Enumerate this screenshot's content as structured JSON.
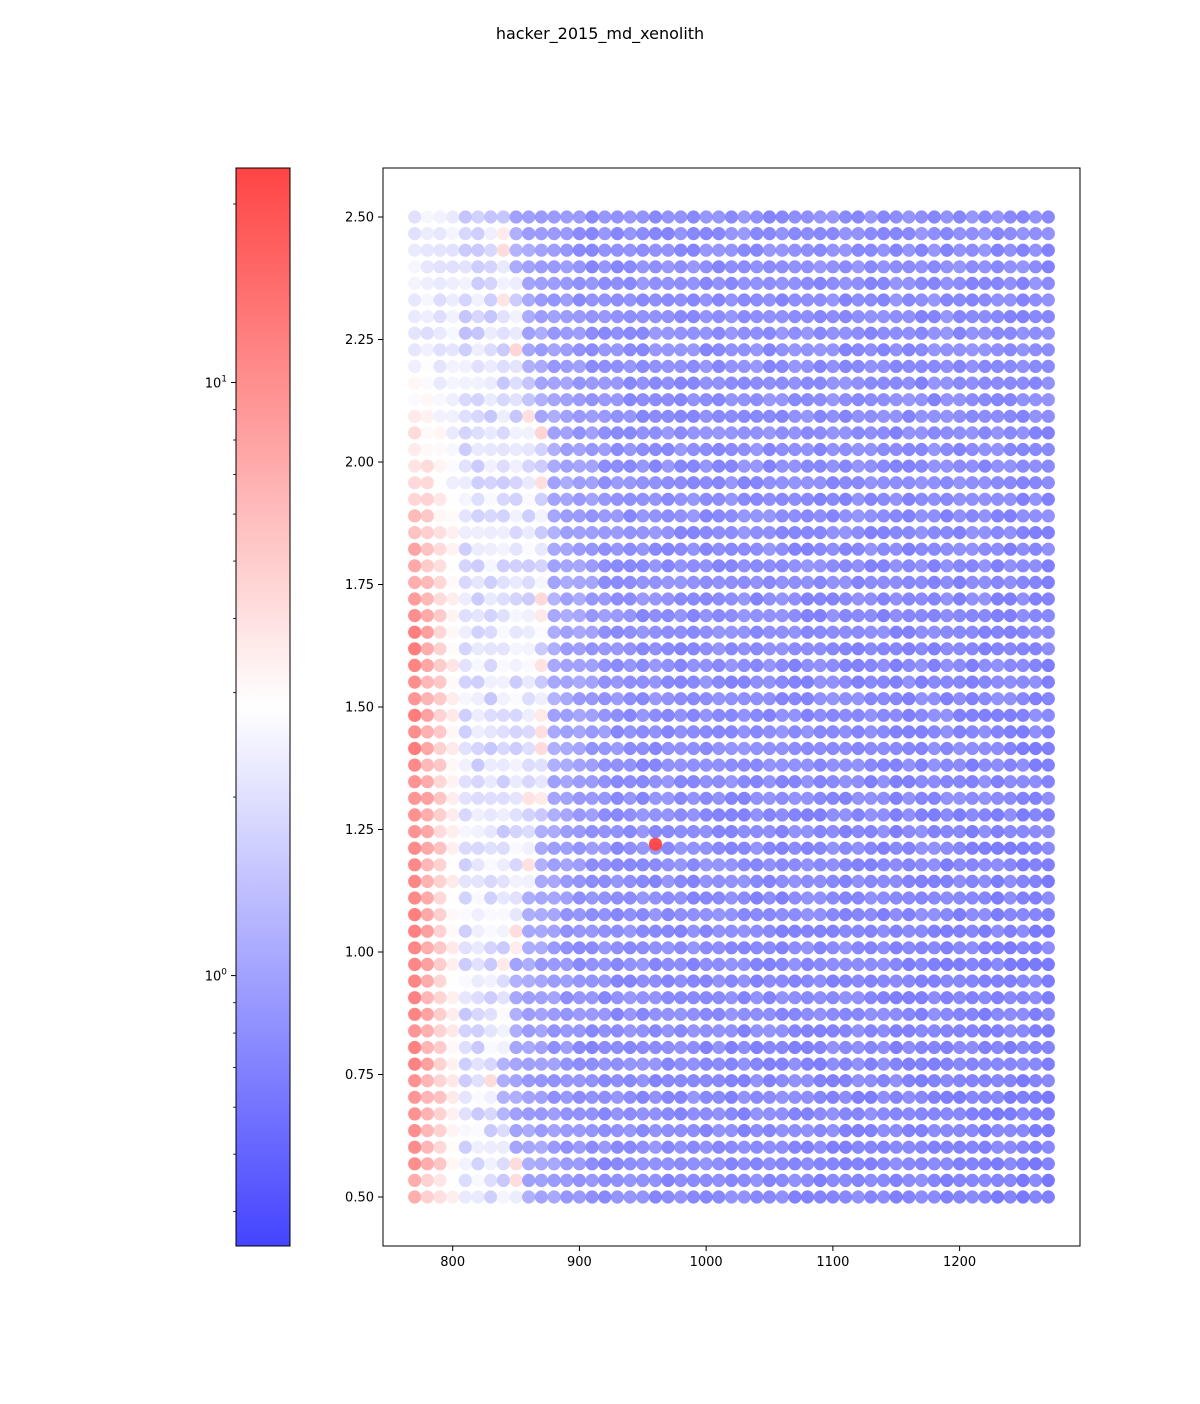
{
  "figure": {
    "title": "hacker_2015_md_xenolith"
  },
  "colorbar": {
    "scale": "log",
    "colormap": "bwr",
    "range": [
      0.35,
      23
    ],
    "ticks": [
      {
        "value": 1,
        "base": "10",
        "exp": "0"
      },
      {
        "value": 10,
        "base": "10",
        "exp": "1"
      }
    ]
  },
  "colors": {
    "low": "#4444ff",
    "mid": "#ffffff",
    "high": "#ff4444",
    "marker_alpha": 0.72
  },
  "chart_data": {
    "type": "scatter",
    "title": "hacker_2015_md_xenolith",
    "xlabel": "",
    "ylabel": "",
    "xlim": [
      745,
      1295
    ],
    "ylim": [
      0.4,
      2.6
    ],
    "xticks": [
      800,
      900,
      1000,
      1100,
      1200
    ],
    "yticks": [
      0.5,
      0.75,
      1.0,
      1.25,
      1.5,
      1.75,
      2.0,
      2.25,
      2.5
    ],
    "ytick_labels": [
      "0.50",
      "0.75",
      "1.00",
      "1.25",
      "1.50",
      "1.75",
      "2.00",
      "2.25",
      "2.50"
    ],
    "grid": false,
    "grid_x": {
      "start": 770,
      "step": 10,
      "count": 51
    },
    "grid_y": {
      "start": 0.5,
      "step": 0.0339,
      "count": 60
    },
    "color_field": {
      "description_values": "log10 color value per point",
      "red_band_x_end": 800,
      "transition_front": [
        [
          0.5,
          860
        ],
        [
          0.7,
          835
        ],
        [
          1.0,
          850
        ],
        [
          1.25,
          870
        ],
        [
          1.6,
          880
        ],
        [
          2.0,
          875
        ],
        [
          2.25,
          855
        ],
        [
          2.5,
          845
        ]
      ],
      "outlier": {
        "x": 960,
        "y": 1.22,
        "value": 23
      }
    }
  }
}
